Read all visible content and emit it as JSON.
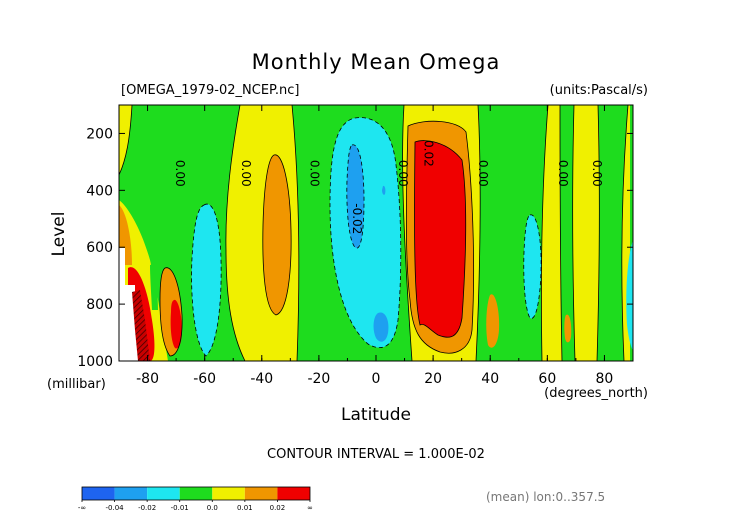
{
  "page": {
    "title": "Monthly Mean Omega",
    "file_label": "[OMEGA_1979-02_NCEP.nc]",
    "units_label": "(units:Pascal/s)",
    "contour_interval": "CONTOUR INTERVAL = 1.000E-02",
    "footer": "(mean) lon:0..357.5",
    "y_unit": "(millibar)",
    "x_unit": "(degrees_north)"
  },
  "colors": {
    "c_lt_m004": "#1e64f0",
    "c_m004_m002": "#1ea0f0",
    "c_m002_m001": "#1ee6f0",
    "c_m001_0": "#1edc1e",
    "c_0_001": "#f0f000",
    "c_001_002": "#f09600",
    "c_gt_002": "#f00000",
    "missing": "#ffffff"
  },
  "chart_data": {
    "type": "contour",
    "title": "Monthly Mean Omega",
    "xlabel": "Latitude",
    "ylabel": "Level",
    "xlim": [
      -90,
      90
    ],
    "ylim": [
      1000,
      100
    ],
    "x_ticks": [
      -80,
      -60,
      -40,
      -20,
      0,
      20,
      40,
      60,
      80
    ],
    "y_ticks": [
      200,
      400,
      600,
      800,
      1000
    ],
    "x_tick_labels": [
      "-80",
      "-60",
      "-40",
      "-20",
      "0",
      "20",
      "40",
      "60",
      "80"
    ],
    "y_tick_labels": [
      "200",
      "400",
      "600",
      "800",
      "1000"
    ],
    "contour_labels": [
      {
        "text": "0.00",
        "x": -70,
        "y": 340
      },
      {
        "text": "0.00",
        "x": -47,
        "y": 340
      },
      {
        "text": "0.00",
        "x": -23,
        "y": 340
      },
      {
        "text": "0.00",
        "x": 8,
        "y": 340
      },
      {
        "text": "0.02",
        "x": 17,
        "y": 270
      },
      {
        "text": "-0.02",
        "x": -8,
        "y": 500
      },
      {
        "text": "0.00",
        "x": 36,
        "y": 340
      },
      {
        "text": "0.00",
        "x": 64,
        "y": 340
      },
      {
        "text": "0.00",
        "x": 76,
        "y": 340
      }
    ],
    "legend": {
      "labels": [
        "-∞",
        "-0.04",
        "-0.02",
        "-0.01",
        "0.0",
        "0.01",
        "0.02",
        "∞"
      ]
    }
  }
}
